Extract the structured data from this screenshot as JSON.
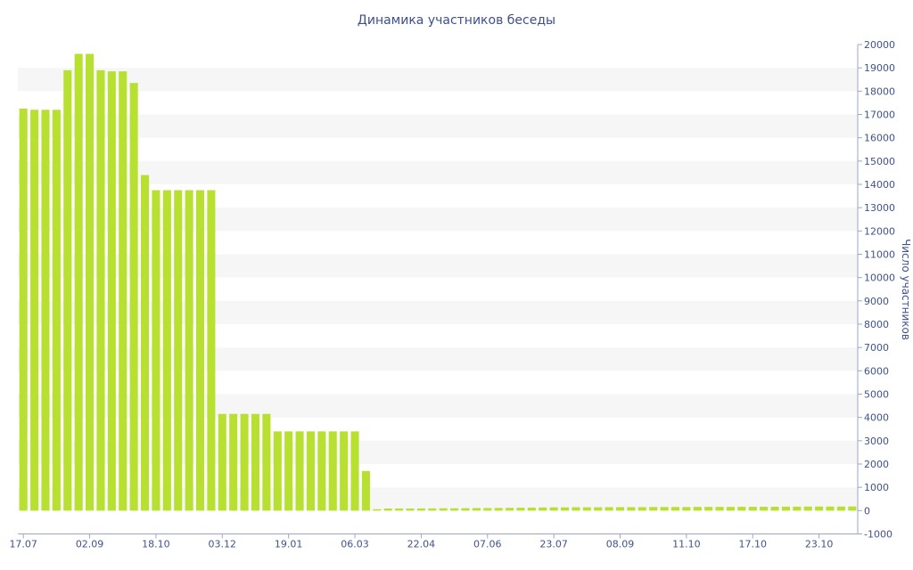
{
  "chart_data": {
    "type": "bar",
    "title": "Динамика участников беседы",
    "xlabel": "",
    "ylabel": "Число участников",
    "ylim": [
      -1000,
      20000
    ],
    "yticks": [
      -1000,
      0,
      1000,
      2000,
      3000,
      4000,
      5000,
      6000,
      7000,
      8000,
      9000,
      10000,
      11000,
      12000,
      13000,
      14000,
      15000,
      16000,
      17000,
      18000,
      19000,
      20000
    ],
    "x_ticks": [
      {
        "index": 0,
        "label": "17.07"
      },
      {
        "index": 6,
        "label": "02.09"
      },
      {
        "index": 12,
        "label": "18.10"
      },
      {
        "index": 18,
        "label": "03.12"
      },
      {
        "index": 24,
        "label": "19.01"
      },
      {
        "index": 30,
        "label": "06.03"
      },
      {
        "index": 36,
        "label": "22.04"
      },
      {
        "index": 42,
        "label": "07.06"
      },
      {
        "index": 48,
        "label": "23.07"
      },
      {
        "index": 54,
        "label": "08.09"
      },
      {
        "index": 60,
        "label": "11.10"
      },
      {
        "index": 66,
        "label": "17.10"
      },
      {
        "index": 72,
        "label": "23.10"
      }
    ],
    "values": [
      17250,
      17200,
      17200,
      17200,
      18900,
      19600,
      19600,
      18900,
      18850,
      18850,
      18350,
      14400,
      13750,
      13750,
      13750,
      13750,
      13750,
      13750,
      4150,
      4150,
      4150,
      4150,
      4150,
      3400,
      3400,
      3400,
      3400,
      3400,
      3400,
      3400,
      3400,
      1700,
      60,
      90,
      90,
      90,
      95,
      95,
      100,
      100,
      105,
      110,
      110,
      115,
      120,
      125,
      130,
      135,
      140,
      140,
      145,
      145,
      145,
      150,
      150,
      150,
      150,
      155,
      155,
      155,
      155,
      160,
      160,
      160,
      160,
      165,
      165,
      165,
      165,
      170,
      170,
      175,
      175,
      175,
      175,
      180
    ],
    "grid": true,
    "colors": {
      "bars": "#b7e030",
      "bands": "#f6f6f6",
      "text": "#3f5290",
      "axis": "#9aa7c9"
    }
  }
}
